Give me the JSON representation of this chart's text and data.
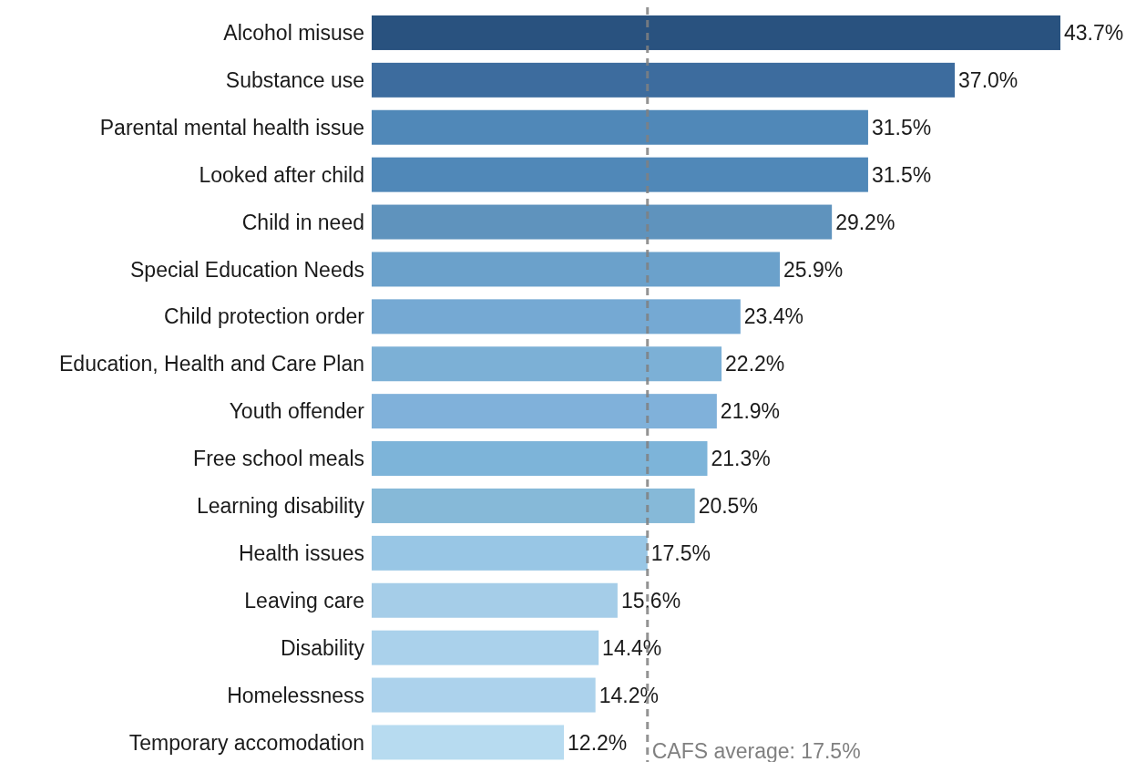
{
  "chart_data": {
    "type": "bar",
    "orientation": "horizontal",
    "categories": [
      "Alcohol misuse",
      "Substance use",
      "Parental mental health issue",
      "Looked after child",
      "Child in need",
      "Special Education Needs",
      "Child protection order",
      "Education, Health and Care Plan",
      "Youth offender",
      "Free school meals",
      "Learning disability",
      "Health issues",
      "Leaving care",
      "Disability",
      "Homelessness",
      "Temporary accomodation"
    ],
    "values": [
      43.7,
      37.0,
      31.5,
      31.5,
      29.2,
      25.9,
      23.4,
      22.2,
      21.9,
      21.3,
      20.5,
      17.5,
      15.6,
      14.4,
      14.2,
      12.2
    ],
    "value_labels": [
      "43.7%",
      "37.0%",
      "31.5%",
      "31.5%",
      "29.2%",
      "25.9%",
      "23.4%",
      "22.2%",
      "21.9%",
      "21.3%",
      "20.5%",
      "17.5%",
      "15.6%",
      "14.4%",
      "14.2%",
      "12.2%"
    ],
    "colors": [
      "#29527f",
      "#3d6c9e",
      "#5088b8",
      "#5088b8",
      "#5f93bd",
      "#6ba1cb",
      "#75a9d3",
      "#7cb0d6",
      "#80b1da",
      "#7db4d9",
      "#86b9d8",
      "#98c6e5",
      "#a5cde8",
      "#aad1eb",
      "#acd2ec",
      "#b7dbf0"
    ],
    "ref_lines": [
      {
        "axis": "x",
        "value": 17.5,
        "label": "CAFS average: 17.5%",
        "color": "#808080",
        "line_style": "dashed"
      }
    ]
  }
}
